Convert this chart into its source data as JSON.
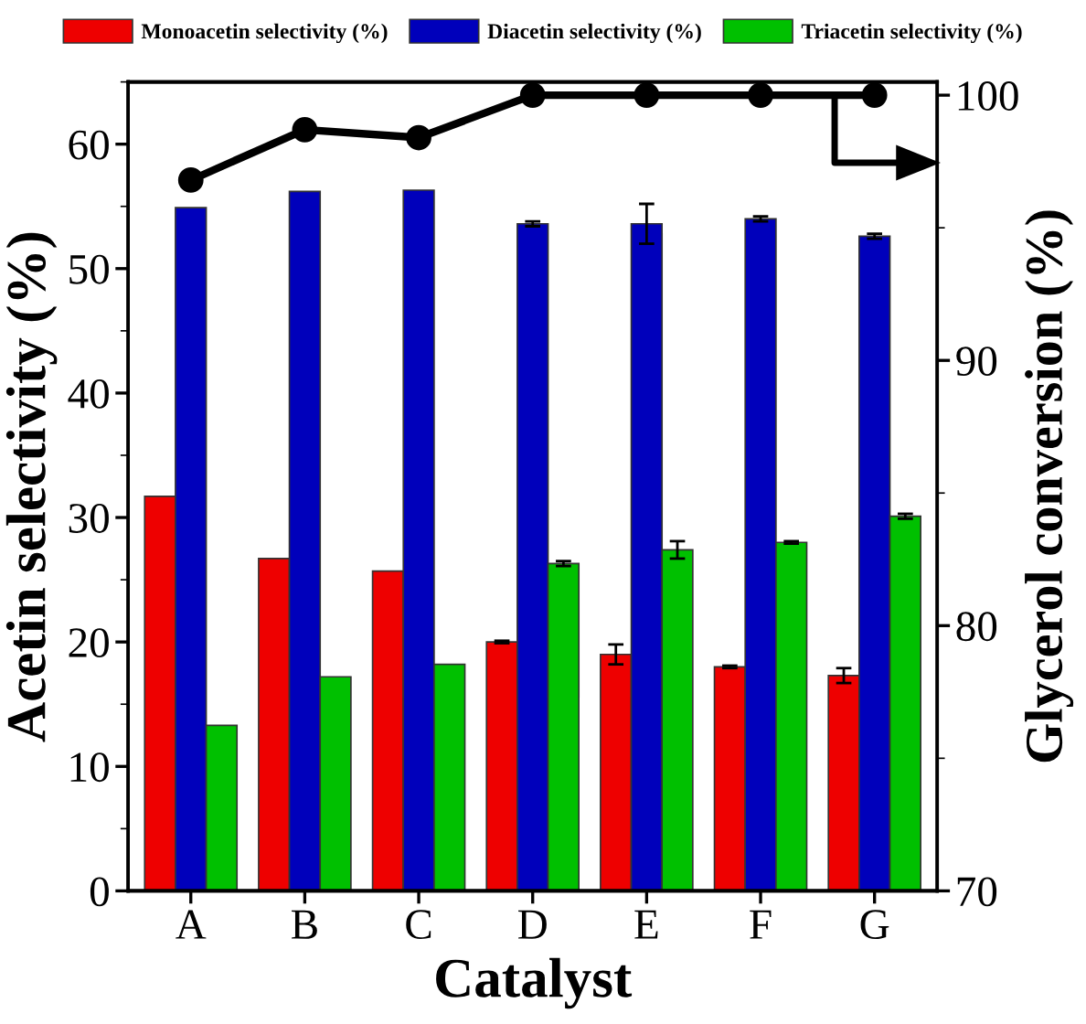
{
  "chart_data": {
    "type": "bar",
    "xlabel": "Catalyst",
    "ylabel": "Acetin selectivity (%)",
    "y2label": "Glycerol conversion (%)",
    "categories": [
      "A",
      "B",
      "C",
      "D",
      "E",
      "F",
      "G"
    ],
    "ylim": [
      0,
      65
    ],
    "yticks": [
      0,
      10,
      20,
      30,
      40,
      50,
      60
    ],
    "y2lim": [
      70,
      100.5
    ],
    "y2ticks": [
      70,
      80,
      90,
      100
    ],
    "legend": "top",
    "grid": false,
    "series": [
      {
        "name": "Monoacetin selectivity (%)",
        "color": "#ee0000",
        "values": [
          31.7,
          26.7,
          25.7,
          20.0,
          19.0,
          18.0,
          17.3
        ],
        "errors": [
          null,
          null,
          null,
          0.1,
          0.8,
          0.1,
          0.6
        ]
      },
      {
        "name": "Diacetin selectivity (%)",
        "color": "#0000bb",
        "values": [
          54.9,
          56.2,
          56.3,
          53.6,
          53.6,
          54.0,
          52.6
        ],
        "errors": [
          null,
          null,
          null,
          0.2,
          1.6,
          0.2,
          0.2
        ]
      },
      {
        "name": "Triacetin selectivity (%)",
        "color": "#00c000",
        "values": [
          13.3,
          17.2,
          18.2,
          26.3,
          27.4,
          28.0,
          30.1
        ],
        "errors": [
          null,
          null,
          null,
          0.2,
          0.7,
          0.1,
          0.2
        ]
      },
      {
        "type": "line",
        "axis": "y2",
        "color": "#000000",
        "marker": "circle",
        "line_style": "solid",
        "values": [
          96.8,
          98.7,
          98.4,
          100,
          100,
          100,
          100
        ]
      }
    ]
  }
}
